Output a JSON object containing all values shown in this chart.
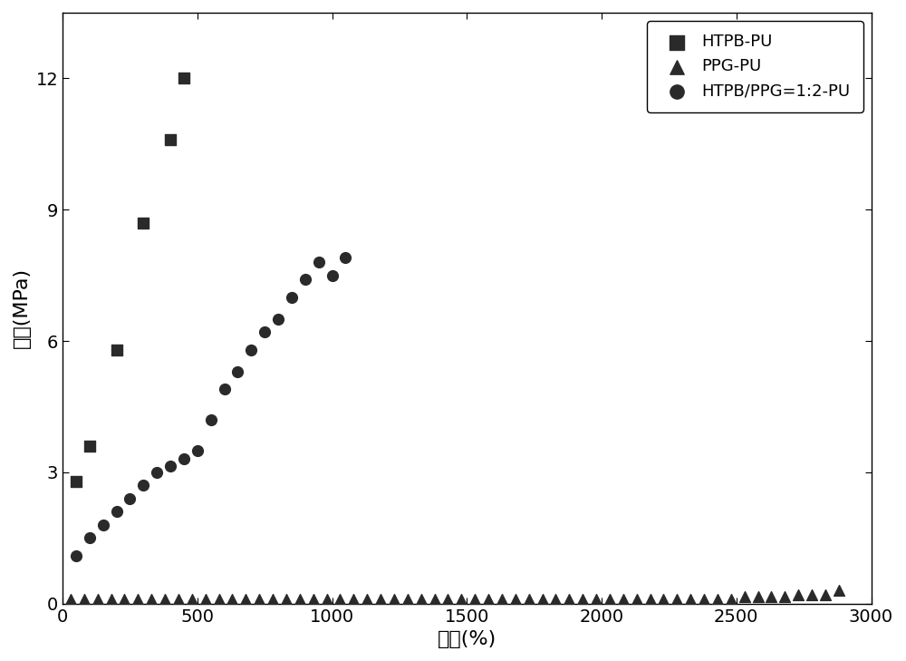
{
  "htpb_pu_x": [
    50,
    100,
    200,
    300,
    400,
    450
  ],
  "htpb_pu_y": [
    2.8,
    3.6,
    5.8,
    8.7,
    10.6,
    12.0
  ],
  "ppg_pu_x": [
    30,
    80,
    130,
    180,
    230,
    280,
    330,
    380,
    430,
    480,
    530,
    580,
    630,
    680,
    730,
    780,
    830,
    880,
    930,
    980,
    1030,
    1080,
    1130,
    1180,
    1230,
    1280,
    1330,
    1380,
    1430,
    1480,
    1530,
    1580,
    1630,
    1680,
    1730,
    1780,
    1830,
    1880,
    1930,
    1980,
    2030,
    2080,
    2130,
    2180,
    2230,
    2280,
    2330,
    2380,
    2430,
    2480,
    2530,
    2580,
    2630,
    2680,
    2730,
    2780,
    2830,
    2880
  ],
  "ppg_pu_y": [
    0.1,
    0.1,
    0.1,
    0.1,
    0.1,
    0.1,
    0.1,
    0.1,
    0.1,
    0.1,
    0.1,
    0.1,
    0.1,
    0.1,
    0.1,
    0.1,
    0.1,
    0.1,
    0.1,
    0.1,
    0.1,
    0.1,
    0.1,
    0.1,
    0.1,
    0.1,
    0.1,
    0.1,
    0.1,
    0.1,
    0.1,
    0.1,
    0.1,
    0.1,
    0.1,
    0.1,
    0.1,
    0.1,
    0.1,
    0.1,
    0.1,
    0.1,
    0.1,
    0.1,
    0.1,
    0.1,
    0.1,
    0.1,
    0.1,
    0.1,
    0.15,
    0.15,
    0.15,
    0.15,
    0.2,
    0.2,
    0.2,
    0.3
  ],
  "mixed_x": [
    50,
    100,
    150,
    200,
    250,
    300,
    350,
    400,
    450,
    500,
    550,
    600,
    650,
    700,
    750,
    800,
    850,
    900,
    950,
    1000,
    1050
  ],
  "mixed_y": [
    1.1,
    1.5,
    1.8,
    2.1,
    2.4,
    2.7,
    3.0,
    3.15,
    3.3,
    3.5,
    4.2,
    4.9,
    5.3,
    5.8,
    6.2,
    6.5,
    7.0,
    7.4,
    7.8,
    7.5,
    7.9
  ],
  "xlabel": "应变(%)",
  "ylabel": "应力(MPa)",
  "xlim": [
    0,
    3000
  ],
  "ylim": [
    0,
    13.5
  ],
  "xticks": [
    0,
    500,
    1000,
    1500,
    2000,
    2500,
    3000
  ],
  "yticks": [
    0,
    3,
    6,
    9,
    12
  ],
  "legend_labels": [
    "HTPB-PU",
    "PPG-PU",
    "HTPB/PPG=1:2-PU"
  ],
  "marker_color": "#2a2a2a",
  "background_color": "#ffffff",
  "marker_size": 72,
  "font_size_label": 16,
  "font_size_tick": 14,
  "font_size_legend": 13
}
